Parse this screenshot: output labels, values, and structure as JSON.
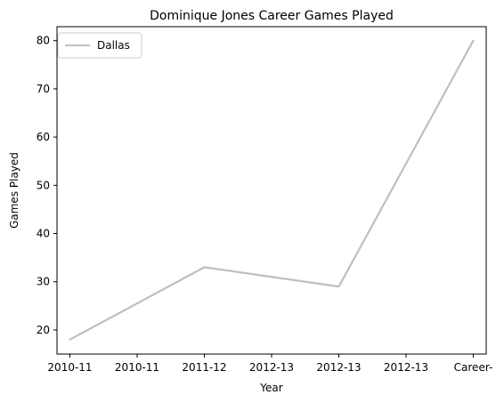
{
  "chart_data": {
    "type": "line",
    "title": "Dominique Jones Career Games Played",
    "xlabel": "Year",
    "ylabel": "Games Played",
    "categories": [
      "2010-11",
      "2010-11",
      "2011-12",
      "2012-13",
      "2012-13",
      "2012-13",
      "Career-"
    ],
    "series": [
      {
        "name": "Dallas",
        "color": "#bfbfbf",
        "x": [
          0,
          2,
          4,
          6
        ],
        "values": [
          18,
          33,
          29,
          80
        ]
      }
    ],
    "ylim": [
      15,
      82.9
    ],
    "yticks": [
      20,
      30,
      40,
      50,
      60,
      70,
      80
    ],
    "grid": false,
    "legend_position": "upper-left"
  }
}
